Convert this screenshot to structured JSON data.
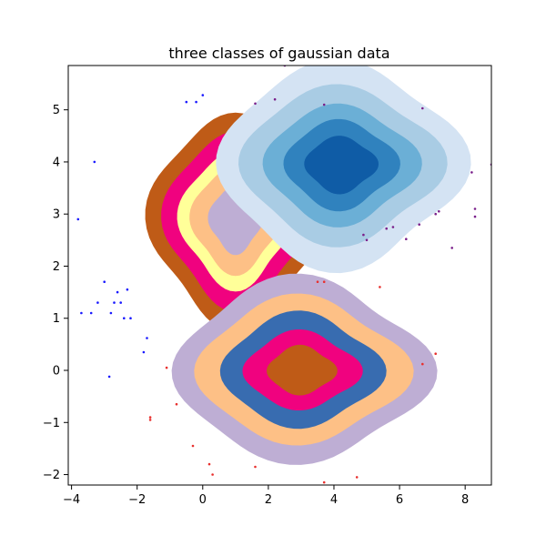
{
  "chart_data": {
    "type": "scatter",
    "title": "three classes of gaussian data",
    "xlabel": "",
    "ylabel": "",
    "xlim": [
      -4.1,
      8.8
    ],
    "ylim": [
      -2.2,
      5.85
    ],
    "x_ticks": [
      -4,
      -2,
      0,
      2,
      4,
      6,
      8
    ],
    "y_ticks": [
      -2,
      -1,
      0,
      1,
      2,
      3,
      4,
      5
    ],
    "grid": false,
    "legend": "none",
    "classes": [
      {
        "center": [
          1.0,
          2.9
        ],
        "colormap": "brown-magenta-yellow-orange-lavender",
        "levels": [
          {
            "fill": "#bf5b17",
            "radius": [
              2.55,
              1.95
            ]
          },
          {
            "fill": "#f0027f",
            "radius": [
              2.1,
              1.6
            ]
          },
          {
            "fill": "#ffff99",
            "radius": [
              1.65,
              1.25
            ]
          },
          {
            "fill": "#fdc086",
            "radius": [
              1.3,
              0.98
            ]
          },
          {
            "fill": "#beaed4",
            "radius": [
              0.78,
              0.62
            ]
          }
        ],
        "point_color": "#1a1aff",
        "points": [
          [
            -3.8,
            2.9
          ],
          [
            -3.7,
            1.1
          ],
          [
            -3.4,
            1.1
          ],
          [
            -3.3,
            4.0
          ],
          [
            -3.2,
            1.3
          ],
          [
            -3.0,
            1.7
          ],
          [
            -2.8,
            1.1
          ],
          [
            -2.7,
            1.3
          ],
          [
            -2.6,
            1.5
          ],
          [
            -2.5,
            1.3
          ],
          [
            -2.4,
            1.0
          ],
          [
            -2.3,
            1.55
          ],
          [
            -2.2,
            1.0
          ],
          [
            -1.8,
            0.35
          ],
          [
            -1.7,
            0.62
          ],
          [
            -2.85,
            -0.12
          ],
          [
            -0.5,
            5.15
          ],
          [
            -0.2,
            5.15
          ],
          [
            0.0,
            5.28
          ]
        ]
      },
      {
        "center": [
          4.2,
          3.95
        ],
        "colormap": "blues",
        "levels": [
          {
            "fill": "#d4e3f3",
            "radius": [
              3.6,
              1.9
            ]
          },
          {
            "fill": "#a9cce4",
            "radius": [
              2.95,
              1.45
            ]
          },
          {
            "fill": "#6bafd6",
            "radius": [
              2.25,
              1.1
            ]
          },
          {
            "fill": "#3082be",
            "radius": [
              1.65,
              0.82
            ]
          },
          {
            "fill": "#0f5ca6",
            "radius": [
              1.05,
              0.52
            ]
          }
        ],
        "point_color": "#7a1f8a",
        "points": [
          [
            1.8,
            5.9
          ],
          [
            1.6,
            5.12
          ],
          [
            2.5,
            5.85
          ],
          [
            2.2,
            5.2
          ],
          [
            3.7,
            5.1
          ],
          [
            5.0,
            2.5
          ],
          [
            5.6,
            2.72
          ],
          [
            5.8,
            2.75
          ],
          [
            6.2,
            2.52
          ],
          [
            6.6,
            2.8
          ],
          [
            7.1,
            3.0
          ],
          [
            7.2,
            3.05
          ],
          [
            7.6,
            2.35
          ],
          [
            8.2,
            3.8
          ],
          [
            8.3,
            3.1
          ],
          [
            8.3,
            2.95
          ],
          [
            8.8,
            3.95
          ],
          [
            6.7,
            5.03
          ],
          [
            4.9,
            2.6
          ]
        ]
      },
      {
        "center": [
          3.0,
          0.0
        ],
        "colormap": "brown-magenta-blue-orange-lavender",
        "levels": [
          {
            "fill": "#beaed4",
            "radius": [
              3.75,
              1.7
            ]
          },
          {
            "fill": "#fdc086",
            "radius": [
              3.1,
              1.35
            ]
          },
          {
            "fill": "#386cb0",
            "radius": [
              2.35,
              1.05
            ]
          },
          {
            "fill": "#f0027f",
            "radius": [
              1.7,
              0.72
            ]
          },
          {
            "fill": "#bf5b17",
            "radius": [
              1.0,
              0.45
            ]
          }
        ],
        "point_color": "#e8302e",
        "points": [
          [
            -1.1,
            0.05
          ],
          [
            -1.6,
            -0.9
          ],
          [
            -1.6,
            -0.95
          ],
          [
            -0.8,
            -0.65
          ],
          [
            -0.3,
            -1.45
          ],
          [
            0.2,
            -1.8
          ],
          [
            0.3,
            -2.0
          ],
          [
            1.6,
            -1.85
          ],
          [
            3.5,
            1.7
          ],
          [
            3.7,
            1.7
          ],
          [
            5.4,
            1.6
          ],
          [
            6.7,
            0.12
          ],
          [
            7.1,
            0.32
          ],
          [
            3.7,
            -2.15
          ],
          [
            4.7,
            -2.05
          ]
        ]
      }
    ]
  }
}
